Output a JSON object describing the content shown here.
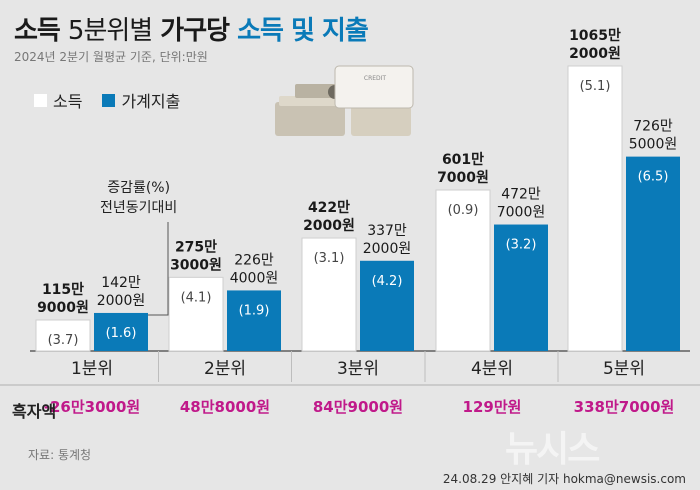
{
  "title": {
    "part1": "소득",
    "part2": "5분위별",
    "part3": "가구당",
    "part4": "소득 및 지출"
  },
  "subtitle": "2024년 2분기 월평균 기준, 단위:만원",
  "legend": {
    "income": "소득",
    "expense": "가계지출"
  },
  "annotation": [
    "증감률(%)",
    "전년동기대비"
  ],
  "surplus_label": "흑자액",
  "source": "자료: 통계청",
  "credit": "24.08.29 안지혜 기자 hokma@newsis.com",
  "logo": "뉴시스",
  "deco_card_text": "CREDIT",
  "colors": {
    "background": "#e6e6e6",
    "income_bar": "#ffffff",
    "expense_bar": "#0a7ab8",
    "title_blue": "#0a7ab8",
    "surplus_text": "#c0198a"
  },
  "chart_data": {
    "type": "bar",
    "unit": "만원",
    "categories": [
      "1분위",
      "2분위",
      "3분위",
      "4분위",
      "5분위"
    ],
    "series": [
      {
        "name": "소득",
        "values": [
          1159000,
          2753000,
          4222000,
          6017000,
          10652000
        ],
        "labels": [
          [
            "115만",
            "9000원"
          ],
          [
            "275만",
            "3000원"
          ],
          [
            "422만",
            "2000원"
          ],
          [
            "601만",
            "7000원"
          ],
          [
            "1065만",
            "2000원"
          ]
        ],
        "change_pct": [
          "(3.7)",
          "(4.1)",
          "(3.1)",
          "(0.9)",
          "(5.1)"
        ]
      },
      {
        "name": "가계지출",
        "values": [
          1422000,
          2264000,
          3372000,
          4727000,
          7265000
        ],
        "labels": [
          [
            "142만",
            "2000원"
          ],
          [
            "226만",
            "4000원"
          ],
          [
            "337만",
            "2000원"
          ],
          [
            "472만",
            "7000원"
          ],
          [
            "726만",
            "5000원"
          ]
        ],
        "change_pct": [
          "(1.6)",
          "(1.9)",
          "(4.2)",
          "(3.2)",
          "(6.5)"
        ]
      }
    ],
    "surplus": [
      "-26만3000원",
      "48만8000원",
      "84만9000원",
      "129만원",
      "338만7000원"
    ],
    "ylim": [
      0,
      11000000
    ]
  }
}
